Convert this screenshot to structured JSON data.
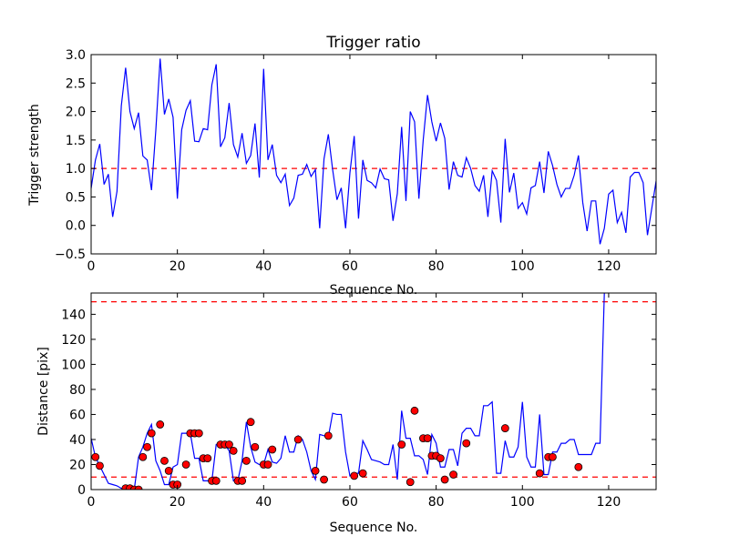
{
  "colors": {
    "line": "#0000ff",
    "threshold": "#ff0000",
    "marker_fill": "#ff0000",
    "marker_edge": "#000000",
    "axes": "#000000",
    "background": "#ffffff"
  },
  "chart_data": [
    {
      "type": "line",
      "title": "Trigger ratio",
      "xlabel": "Sequence No.",
      "ylabel": "Trigger strength",
      "xlim": [
        0,
        131
      ],
      "ylim": [
        -0.5,
        3.0
      ],
      "xticks": [
        0,
        20,
        40,
        60,
        80,
        100,
        120
      ],
      "yticks": [
        -0.5,
        0.0,
        0.5,
        1.0,
        1.5,
        2.0,
        2.5,
        3.0
      ],
      "ytick_labels": [
        "−0.5",
        "0.0",
        "0.5",
        "1.0",
        "1.5",
        "2.0",
        "2.5",
        "3.0"
      ],
      "hlines": [
        1.0
      ],
      "series": [
        {
          "name": "Trigger strength",
          "values": [
            0.65,
            1.15,
            1.43,
            0.72,
            0.9,
            0.15,
            0.6,
            2.1,
            2.77,
            2.0,
            1.7,
            1.98,
            1.22,
            1.15,
            0.62,
            1.67,
            2.93,
            1.95,
            2.22,
            1.9,
            0.47,
            1.68,
            2.02,
            2.19,
            1.48,
            1.47,
            1.7,
            1.68,
            2.47,
            2.83,
            1.38,
            1.54,
            2.15,
            1.42,
            1.2,
            1.62,
            1.09,
            1.23,
            1.79,
            0.84,
            2.75,
            1.15,
            1.42,
            0.88,
            0.75,
            0.9,
            0.35,
            0.48,
            0.88,
            0.9,
            1.07,
            0.86,
            0.98,
            -0.05,
            1.17,
            1.6,
            0.98,
            0.45,
            0.66,
            -0.05,
            0.92,
            1.57,
            0.12,
            1.15,
            0.79,
            0.75,
            0.66,
            0.99,
            0.82,
            0.8,
            0.08,
            0.56,
            1.73,
            0.43,
            2.0,
            1.82,
            0.47,
            1.5,
            2.29,
            1.82,
            1.48,
            1.8,
            1.53,
            0.63,
            1.12,
            0.88,
            0.85,
            1.19,
            1.0,
            0.7,
            0.6,
            0.88,
            0.15,
            0.96,
            0.79,
            0.05,
            1.52,
            0.58,
            0.92,
            0.3,
            0.4,
            0.2,
            0.66,
            0.7,
            1.12,
            0.57,
            1.3,
            1.05,
            0.72,
            0.5,
            0.65,
            0.65,
            0.88,
            1.23,
            0.4,
            -0.1,
            0.43,
            0.43,
            -0.33,
            -0.05,
            0.55,
            0.62,
            0.05,
            0.23,
            -0.13,
            0.85,
            0.93,
            0.93,
            0.75,
            -0.17,
            0.3,
            0.78
          ]
        }
      ]
    },
    {
      "type": "line",
      "title": "",
      "xlabel": "Sequence No.",
      "ylabel": "Distance [pix]",
      "xlim": [
        0,
        131
      ],
      "ylim": [
        0,
        157
      ],
      "xticks": [
        0,
        20,
        40,
        60,
        80,
        100,
        120
      ],
      "yticks": [
        0,
        20,
        40,
        60,
        80,
        100,
        120,
        140
      ],
      "hlines": [
        150,
        10
      ],
      "series": [
        {
          "name": "Distance",
          "values": [
            41,
            26,
            19,
            12,
            5,
            4,
            3,
            1,
            1,
            1,
            0,
            26,
            34,
            45,
            52,
            23,
            15,
            4,
            4,
            18,
            20,
            45,
            45,
            45,
            25,
            25,
            7,
            7,
            7,
            36,
            36,
            36,
            31,
            7,
            7,
            23,
            54,
            34,
            22,
            20,
            20,
            32,
            22,
            21,
            25,
            43,
            30,
            30,
            43,
            40,
            30,
            15,
            8,
            44,
            43,
            42,
            61,
            60,
            60,
            30,
            11,
            13,
            13,
            39,
            32,
            24,
            23,
            22,
            20,
            20,
            36,
            8,
            63,
            41,
            41,
            27,
            27,
            24,
            12,
            44,
            37,
            18,
            18,
            32,
            32,
            19,
            45,
            49,
            49,
            43,
            43,
            67,
            67,
            70,
            13,
            13,
            39,
            26,
            26,
            34,
            70,
            26,
            18,
            18,
            60,
            12,
            12,
            30,
            30,
            37,
            37,
            40,
            40,
            28,
            28,
            28,
            28,
            37,
            37,
            157
          ]
        }
      ],
      "markers": {
        "x": [
          1,
          2,
          8,
          9,
          10,
          11,
          12,
          13,
          14,
          16,
          17,
          18,
          19,
          20,
          22,
          23,
          24,
          25,
          26,
          27,
          28,
          29,
          30,
          31,
          32,
          33,
          34,
          35,
          36,
          37,
          38,
          40,
          41,
          42,
          48,
          52,
          54,
          55,
          61,
          63,
          72,
          74,
          75,
          77,
          78,
          79,
          80,
          81,
          82,
          84,
          87,
          96,
          104,
          106,
          107,
          113
        ],
        "y": [
          26,
          19,
          1,
          1,
          0,
          0,
          26,
          34,
          45,
          52,
          23,
          15,
          4,
          4,
          20,
          45,
          45,
          45,
          25,
          25,
          7,
          7,
          36,
          36,
          36,
          31,
          7,
          7,
          23,
          54,
          34,
          20,
          20,
          32,
          40,
          15,
          8,
          43,
          11,
          13,
          36,
          6,
          63,
          41,
          41,
          27,
          27,
          25,
          8,
          12,
          37,
          49,
          13,
          26,
          26,
          18
        ]
      }
    }
  ]
}
